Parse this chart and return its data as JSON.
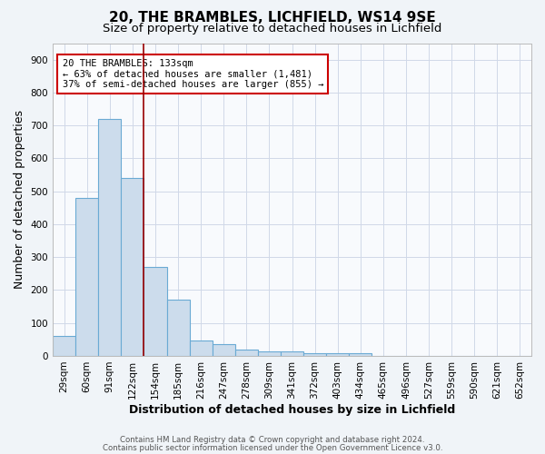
{
  "title1": "20, THE BRAMBLES, LICHFIELD, WS14 9SE",
  "title2": "Size of property relative to detached houses in Lichfield",
  "xlabel": "Distribution of detached houses by size in Lichfield",
  "ylabel": "Number of detached properties",
  "bin_labels": [
    "29sqm",
    "60sqm",
    "91sqm",
    "122sqm",
    "154sqm",
    "185sqm",
    "216sqm",
    "247sqm",
    "278sqm",
    "309sqm",
    "341sqm",
    "372sqm",
    "403sqm",
    "434sqm",
    "465sqm",
    "496sqm",
    "527sqm",
    "559sqm",
    "590sqm",
    "621sqm",
    "652sqm"
  ],
  "bar_heights": [
    60,
    480,
    720,
    540,
    270,
    170,
    47,
    35,
    20,
    15,
    15,
    8,
    8,
    8,
    0,
    0,
    0,
    0,
    0,
    0,
    0
  ],
  "bar_color": "#ccdcec",
  "bar_edge_color": "#6aaad4",
  "bar_edge_width": 0.8,
  "red_line_color": "#990000",
  "annotation_line1": "20 THE BRAMBLES: 133sqm",
  "annotation_line2": "← 63% of detached houses are smaller (1,481)",
  "annotation_line3": "37% of semi-detached houses are larger (855) →",
  "annotation_box_color": "#ffffff",
  "annotation_box_edge": "#cc0000",
  "ylim": [
    0,
    950
  ],
  "yticks": [
    0,
    100,
    200,
    300,
    400,
    500,
    600,
    700,
    800,
    900
  ],
  "footnote1": "Contains HM Land Registry data © Crown copyright and database right 2024.",
  "footnote2": "Contains public sector information licensed under the Open Government Licence v3.0.",
  "background_color": "#f0f4f8",
  "plot_bg_color": "#f8fafd",
  "grid_color": "#d0d8e8",
  "title1_fontsize": 11,
  "title2_fontsize": 9.5,
  "tick_fontsize": 7.5,
  "label_fontsize": 9,
  "annot_fontsize": 7.5,
  "footnote_fontsize": 6.2
}
